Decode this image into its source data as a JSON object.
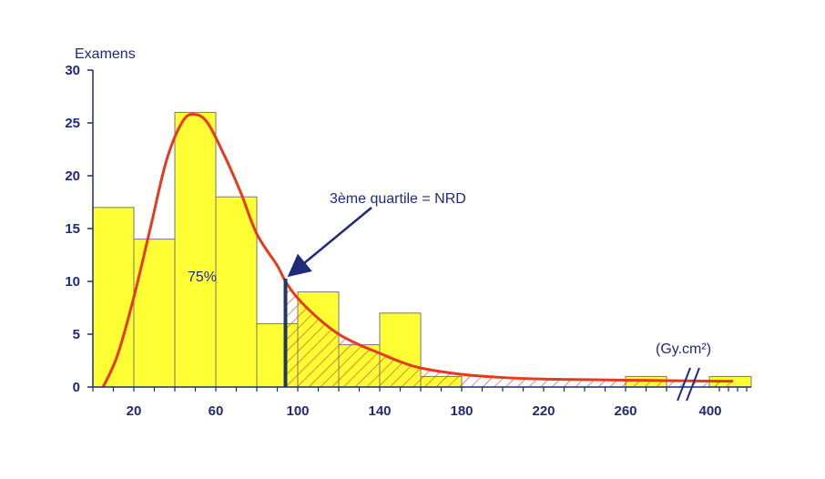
{
  "chart_data": {
    "type": "bar",
    "subtype": "histogram with fitted density curve",
    "ylabel": "Examens",
    "xunit": "(Gy.cm²)",
    "ylim": [
      0,
      30
    ],
    "y_ticks": [
      "0",
      "5",
      "10",
      "15",
      "20",
      "25",
      "30"
    ],
    "x_ticks": [
      "20",
      "60",
      "100",
      "140",
      "180",
      "220",
      "260",
      "400"
    ],
    "bins": [
      {
        "from": 0,
        "to": 20,
        "value": 17
      },
      {
        "from": 20,
        "to": 40,
        "value": 14
      },
      {
        "from": 40,
        "to": 60,
        "value": 26
      },
      {
        "from": 60,
        "to": 80,
        "value": 18
      },
      {
        "from": 80,
        "to": 100,
        "value": 6
      },
      {
        "from": 100,
        "to": 120,
        "value": 9
      },
      {
        "from": 120,
        "to": 140,
        "value": 4
      },
      {
        "from": 140,
        "to": 160,
        "value": 7
      },
      {
        "from": 160,
        "to": 180,
        "value": 1
      },
      {
        "from": 260,
        "to": 280,
        "value": 1
      },
      {
        "from": "break",
        "to": 420,
        "value": 1
      }
    ],
    "axis_break_after": 280,
    "curve": {
      "x": [
        5,
        12,
        20,
        28,
        36,
        44,
        50,
        56,
        64,
        72,
        80,
        90,
        94,
        100,
        110,
        120,
        130,
        140,
        150,
        160,
        180,
        200,
        220,
        240,
        260,
        280,
        300
      ],
      "y": [
        0,
        3,
        8.5,
        15,
        21.5,
        25.2,
        25.8,
        25,
        22,
        18.5,
        14.5,
        11.5,
        10,
        8.4,
        6.5,
        5,
        4,
        3.2,
        2.4,
        1.8,
        1.2,
        0.9,
        0.75,
        0.7,
        0.65,
        0.6,
        0.55
      ]
    },
    "quartile": {
      "x": 94,
      "label": "3ème quartile = NRD"
    },
    "percent_label": "75%",
    "colors": {
      "bar_fill": "#ffff33",
      "bar_stroke": "#777777",
      "curve": "#e63a1f",
      "hatch": "#e63a1f",
      "axis": "#1f2a7a",
      "quartile_line": "#1f3a5f",
      "arrow": "#1f2a7a"
    },
    "grid": false,
    "legend": "none"
  }
}
